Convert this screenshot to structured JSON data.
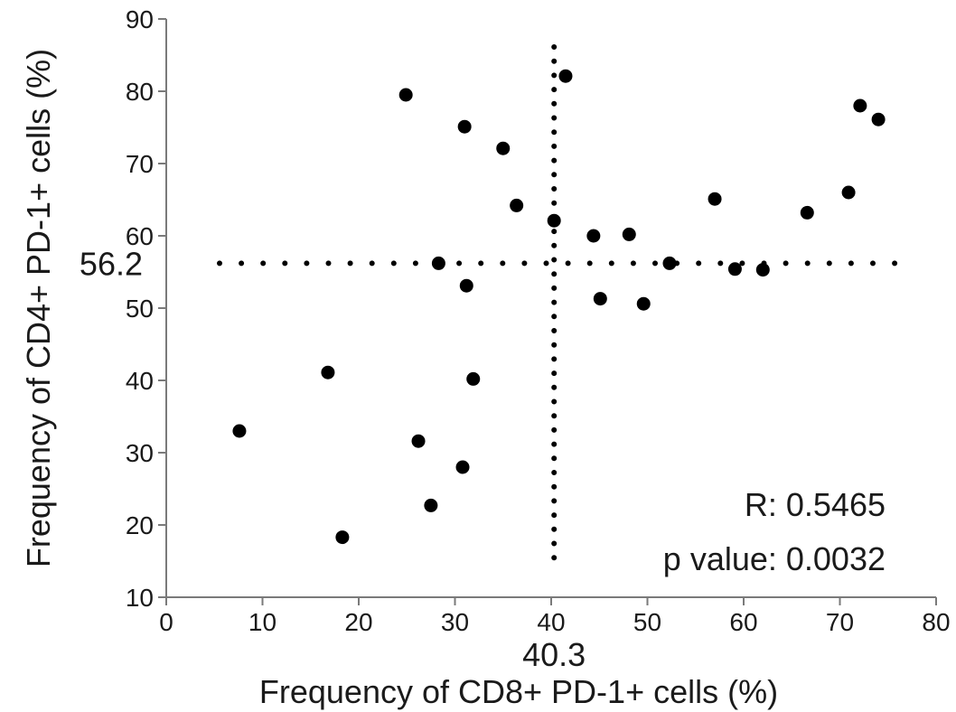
{
  "chart_data": {
    "type": "scatter",
    "xlabel": "Frequency of CD8+ PD-1+ cells (%)",
    "ylabel": "Frequency of CD4+ PD-1+ cells (%)",
    "xlim": [
      0,
      80
    ],
    "ylim": [
      10,
      90
    ],
    "x_ticks": [
      0,
      10,
      20,
      30,
      40,
      50,
      60,
      70,
      80
    ],
    "y_ticks": [
      10,
      20,
      30,
      40,
      50,
      60,
      70,
      80,
      90
    ],
    "grid": false,
    "reference_lines": {
      "vertical": {
        "x": 40.3,
        "label": "40.3"
      },
      "horizontal": {
        "y": 56.2,
        "label": "56.2"
      }
    },
    "annotations": {
      "r": "R: 0.5465",
      "p": "p value: 0.0032"
    },
    "marker_color": "#000000",
    "points": [
      {
        "x": 7.6,
        "y": 33.0
      },
      {
        "x": 16.8,
        "y": 41.1
      },
      {
        "x": 18.3,
        "y": 18.3
      },
      {
        "x": 24.9,
        "y": 79.5
      },
      {
        "x": 26.2,
        "y": 31.6
      },
      {
        "x": 27.5,
        "y": 22.7
      },
      {
        "x": 28.3,
        "y": 56.2
      },
      {
        "x": 30.8,
        "y": 28.0
      },
      {
        "x": 31.0,
        "y": 75.1
      },
      {
        "x": 31.2,
        "y": 53.1
      },
      {
        "x": 31.9,
        "y": 40.2
      },
      {
        "x": 35.0,
        "y": 72.1
      },
      {
        "x": 36.4,
        "y": 64.2
      },
      {
        "x": 40.3,
        "y": 62.1
      },
      {
        "x": 41.5,
        "y": 82.1
      },
      {
        "x": 44.4,
        "y": 60.0
      },
      {
        "x": 45.1,
        "y": 51.3
      },
      {
        "x": 48.1,
        "y": 60.2
      },
      {
        "x": 49.6,
        "y": 50.6
      },
      {
        "x": 52.3,
        "y": 56.2
      },
      {
        "x": 57.0,
        "y": 65.1
      },
      {
        "x": 59.1,
        "y": 55.4
      },
      {
        "x": 62.0,
        "y": 55.3
      },
      {
        "x": 66.6,
        "y": 63.2
      },
      {
        "x": 70.9,
        "y": 66.0
      },
      {
        "x": 72.1,
        "y": 78.0
      },
      {
        "x": 74.0,
        "y": 76.1
      }
    ]
  }
}
